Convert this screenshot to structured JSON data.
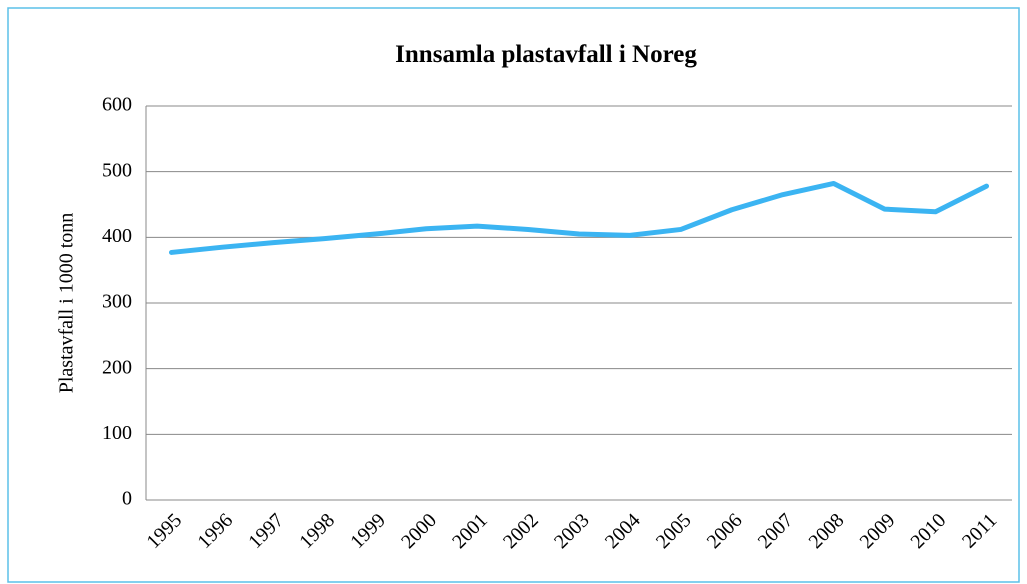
{
  "chart_data": {
    "type": "line",
    "title": "Innsamla plastavfall i Noreg",
    "ylabel": "Plastavfall i 1000 tonn",
    "categories": [
      "1995",
      "1996",
      "1997",
      "1998",
      "1999",
      "2000",
      "2001",
      "2002",
      "2003",
      "2004",
      "2005",
      "2006",
      "2007",
      "2008",
      "2009",
      "2010",
      "2011"
    ],
    "values": [
      377,
      385,
      392,
      398,
      405,
      413,
      417,
      412,
      405,
      403,
      412,
      442,
      465,
      482,
      443,
      439,
      478
    ],
    "color": "#3bb4f2",
    "ylim": [
      0,
      600
    ],
    "yticks": [
      0,
      100,
      200,
      300,
      400,
      500,
      600
    ],
    "grid": true
  }
}
